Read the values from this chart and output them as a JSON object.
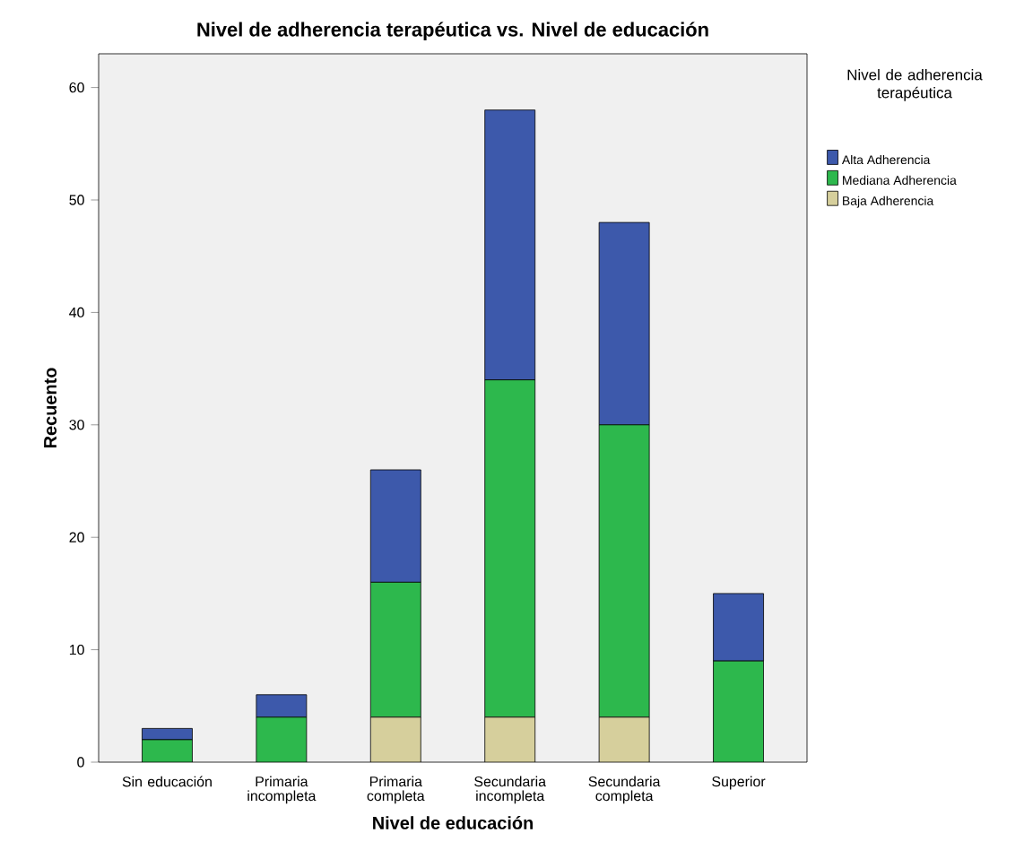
{
  "chart_data": {
    "type": "bar",
    "stacked": true,
    "title": "Nivel de adherencia terapéutica vs. Nivel de educación",
    "xlabel": "Nivel de educación",
    "ylabel": "Recuento",
    "legend_title": "Nivel de adherencia terapéutica",
    "legend": "top right",
    "ylim": [
      0,
      63
    ],
    "yticks": [
      0,
      10,
      20,
      30,
      40,
      50,
      60
    ],
    "categories": [
      "Sin educación",
      "Primaria incompleta",
      "Primaria completa",
      "Secundaria incompleta",
      "Secundaria completa",
      "Superior"
    ],
    "series": [
      {
        "name": "Baja Adherencia",
        "color": "#d6cf9c",
        "values": [
          0,
          0,
          4,
          4,
          4,
          0
        ]
      },
      {
        "name": "Mediana Adherencia",
        "color": "#2db84d",
        "values": [
          2,
          4,
          12,
          30,
          26,
          9
        ]
      },
      {
        "name": "Alta Adherencia",
        "color": "#3d59ab",
        "values": [
          1,
          2,
          10,
          24,
          18,
          6
        ]
      }
    ]
  }
}
